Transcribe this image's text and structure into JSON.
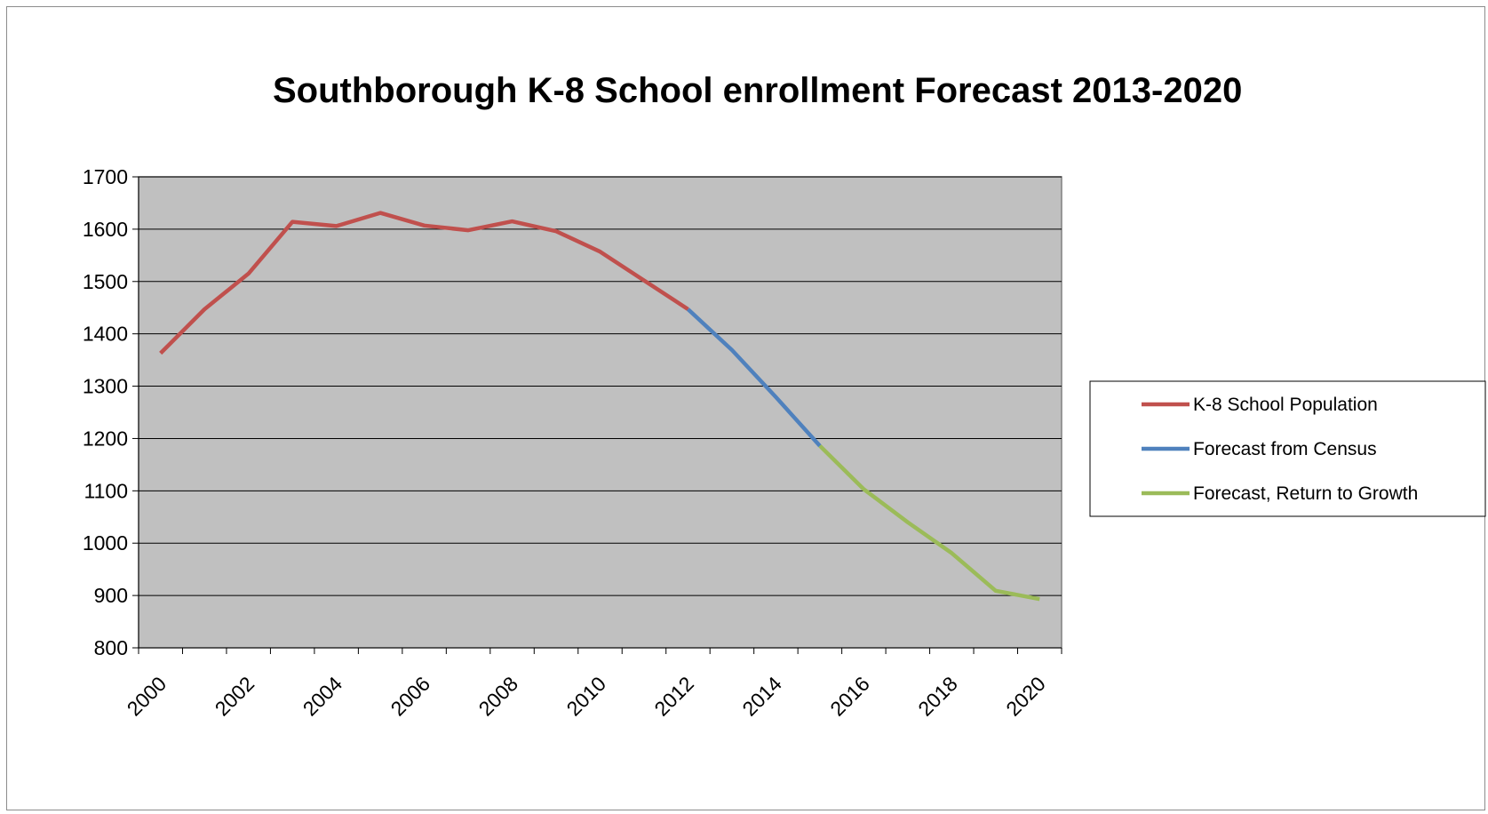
{
  "chart_data": {
    "type": "line",
    "title": "Southborough K-8 School enrollment Forecast 2013-2020",
    "xlabel": "",
    "ylabel": "",
    "ylim": [
      800,
      1700
    ],
    "yticks": [
      800,
      900,
      1000,
      1100,
      1200,
      1300,
      1400,
      1500,
      1600,
      1700
    ],
    "xlim": [
      1999.5,
      2020.5
    ],
    "xticks": [
      2000,
      2002,
      2004,
      2006,
      2008,
      2010,
      2012,
      2014,
      2016,
      2018,
      2020
    ],
    "grid": "horizontal",
    "legend_position": "right",
    "plot_background": "#c0c0c0",
    "series": [
      {
        "name": "K-8 School Population",
        "color": "#c0504d",
        "points": [
          [
            2000,
            1363
          ],
          [
            2001,
            1447
          ],
          [
            2002,
            1515
          ],
          [
            2003,
            1614
          ],
          [
            2004,
            1606
          ],
          [
            2005,
            1631
          ],
          [
            2006,
            1607
          ],
          [
            2007,
            1598
          ],
          [
            2008,
            1615
          ],
          [
            2009,
            1596
          ],
          [
            2010,
            1557
          ],
          [
            2011,
            1502
          ],
          [
            2012,
            1447
          ]
        ]
      },
      {
        "name": "Forecast from Census",
        "color": "#4f81bd",
        "points": [
          [
            2012,
            1447
          ],
          [
            2013,
            1369
          ],
          [
            2014,
            1279
          ],
          [
            2015,
            1186
          ]
        ]
      },
      {
        "name": "Forecast, Return to Growth",
        "color": "#9bbb59",
        "points": [
          [
            2015,
            1186
          ],
          [
            2016,
            1103
          ],
          [
            2017,
            1040
          ],
          [
            2018,
            981
          ],
          [
            2019,
            909
          ],
          [
            2020,
            893
          ]
        ]
      }
    ]
  }
}
